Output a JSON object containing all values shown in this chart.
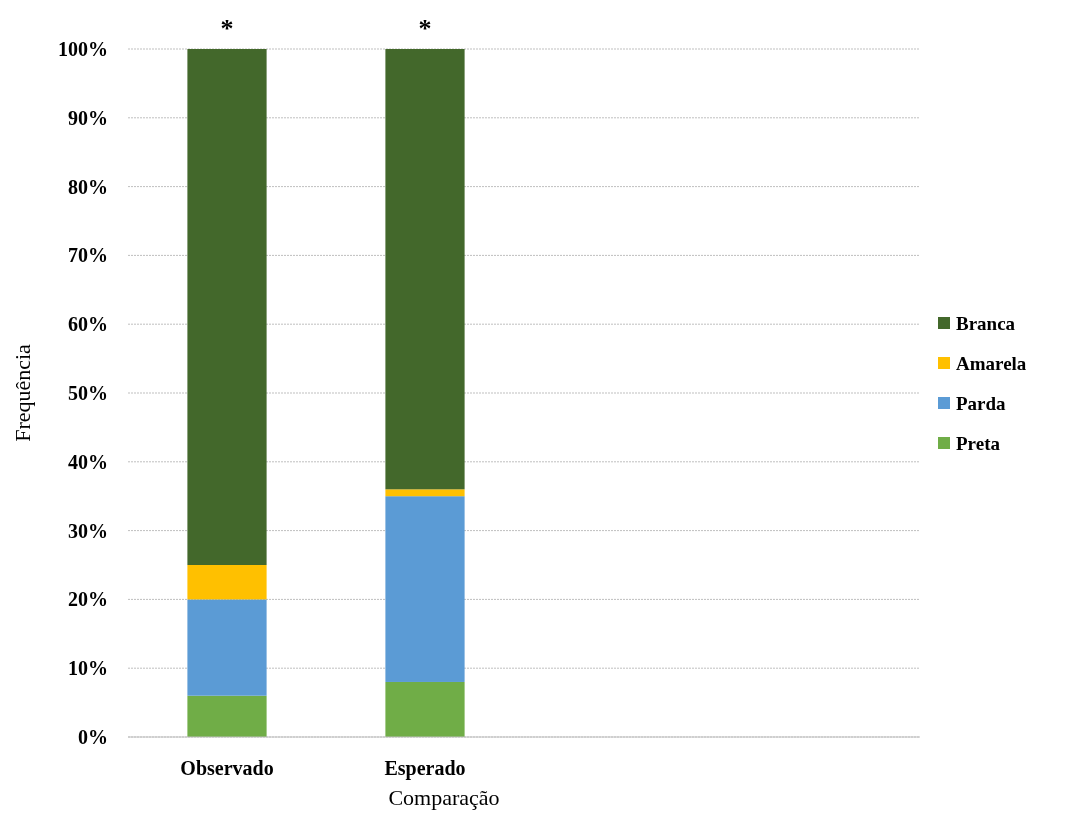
{
  "chart_data": {
    "type": "bar",
    "stacked": true,
    "xlabel": "Comparação",
    "ylabel": "Frequência",
    "categories": [
      "Observado",
      "Esperado",
      null,
      null
    ],
    "series": [
      {
        "name": "Preta",
        "color": "#70ad47",
        "values": [
          6,
          8,
          null,
          null
        ]
      },
      {
        "name": "Parda",
        "color": "#5b9bd5",
        "values": [
          14,
          27,
          null,
          null
        ]
      },
      {
        "name": "Amarela",
        "color": "#ffc000",
        "values": [
          5,
          1,
          null,
          null
        ]
      },
      {
        "name": "Branca",
        "color": "#43682b",
        "values": [
          75,
          64,
          null,
          null
        ]
      }
    ],
    "ylim": [
      0,
      100
    ],
    "yticks": [
      {
        "value": 0,
        "label": "0%"
      },
      {
        "value": 10,
        "label": "10%"
      },
      {
        "value": 20,
        "label": "20%"
      },
      {
        "value": 30,
        "label": "30%"
      },
      {
        "value": 40,
        "label": "40%"
      },
      {
        "value": 50,
        "label": "50%"
      },
      {
        "value": 60,
        "label": "60%"
      },
      {
        "value": 70,
        "label": "70%"
      },
      {
        "value": 80,
        "label": "80%"
      },
      {
        "value": 90,
        "label": "90%"
      },
      {
        "value": 100,
        "label": "100%"
      }
    ],
    "annotations": [
      {
        "text": "*",
        "x": "Observado",
        "y": 100
      },
      {
        "text": "*",
        "x": "Esperado",
        "y": 100
      }
    ],
    "grid": "y",
    "legend": "right"
  }
}
